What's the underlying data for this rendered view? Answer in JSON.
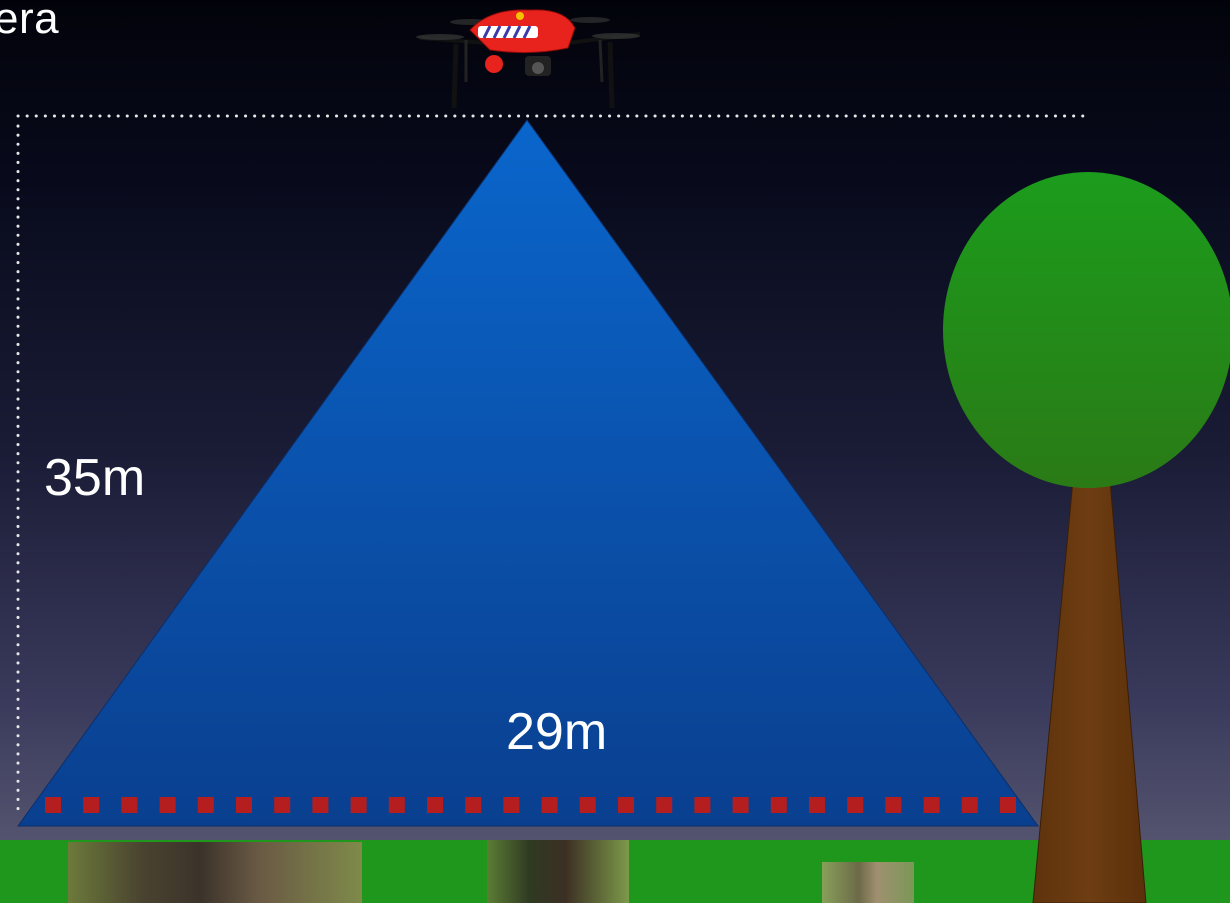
{
  "slide": {
    "title": "era",
    "height_label": "35m",
    "width_label": "29m"
  },
  "colors": {
    "cone_top": "#0a64c8",
    "cone_bottom": "#0a3e8e",
    "drone_body": "#e8221c",
    "tree_crown": "#1f9a22",
    "tree_trunk": "#6b3a10",
    "ground": "#1f961c",
    "sensor_squares": "#b41e1e",
    "dotted_lines": "#e6e6e6"
  },
  "icons": {
    "drone": "drone-icon",
    "tree": "tree-icon"
  },
  "photos": [
    "wild-boar-photo",
    "fawn-photo",
    "small-animal-photo"
  ]
}
